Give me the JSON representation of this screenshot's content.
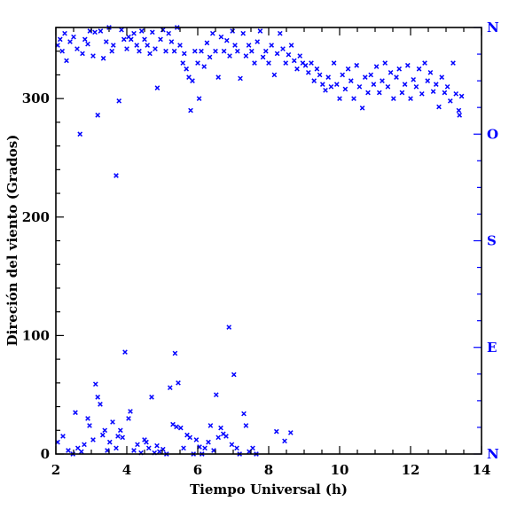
{
  "chart_data": {
    "type": "scatter",
    "title": "",
    "xlabel": "Tiempo Universal (h)",
    "ylabel": "Direción del viento (Grados)",
    "xlim": [
      2,
      14
    ],
    "ylim": [
      0,
      360
    ],
    "x_ticks": [
      2,
      4,
      6,
      8,
      10,
      12,
      14
    ],
    "x_tick_labels": [
      "2",
      "4",
      "6",
      "8",
      "10",
      "12",
      "14"
    ],
    "y_ticks": [
      0,
      100,
      200,
      300
    ],
    "y_tick_labels": [
      "0",
      "100",
      "200",
      "300"
    ],
    "right_axis_labels": [
      {
        "value": 0,
        "label": "N"
      },
      {
        "value": 90,
        "label": "E"
      },
      {
        "value": 180,
        "label": "S"
      },
      {
        "value": 270,
        "label": "O"
      },
      {
        "value": 360,
        "label": "N"
      }
    ],
    "marker": "x",
    "color": "#0000ff",
    "grid": false,
    "series": [
      {
        "points": [
          [
            2.05,
            345
          ],
          [
            2.12,
            350
          ],
          [
            2.18,
            340
          ],
          [
            2.25,
            355
          ],
          [
            2.3,
            332
          ],
          [
            2.4,
            348
          ],
          [
            2.5,
            352
          ],
          [
            2.6,
            342
          ],
          [
            2.68,
            270
          ],
          [
            2.75,
            338
          ],
          [
            2.82,
            350
          ],
          [
            2.9,
            346
          ],
          [
            2.96,
            357
          ],
          [
            3.05,
            336
          ],
          [
            3.1,
            356
          ],
          [
            3.18,
            286
          ],
          [
            3.26,
            357
          ],
          [
            3.34,
            334
          ],
          [
            3.42,
            348
          ],
          [
            3.5,
            360
          ],
          [
            3.58,
            340
          ],
          [
            3.62,
            345
          ],
          [
            3.7,
            235
          ],
          [
            3.78,
            298
          ],
          [
            3.85,
            358
          ],
          [
            3.92,
            350
          ],
          [
            4.0,
            342
          ],
          [
            4.05,
            352
          ],
          [
            4.12,
            350
          ],
          [
            4.2,
            355
          ],
          [
            4.28,
            345
          ],
          [
            4.35,
            340
          ],
          [
            4.42,
            357
          ],
          [
            4.5,
            350
          ],
          [
            4.58,
            345
          ],
          [
            4.65,
            338
          ],
          [
            4.72,
            356
          ],
          [
            4.8,
            342
          ],
          [
            4.86,
            309
          ],
          [
            4.95,
            350
          ],
          [
            5.02,
            358
          ],
          [
            5.1,
            340
          ],
          [
            5.18,
            355
          ],
          [
            5.26,
            348
          ],
          [
            5.34,
            340
          ],
          [
            5.42,
            360
          ],
          [
            5.5,
            345
          ],
          [
            5.58,
            330
          ],
          [
            5.62,
            338
          ],
          [
            5.68,
            325
          ],
          [
            5.75,
            318
          ],
          [
            5.8,
            290
          ],
          [
            5.85,
            315
          ],
          [
            5.92,
            340
          ],
          [
            6.0,
            330
          ],
          [
            6.04,
            300
          ],
          [
            6.1,
            340
          ],
          [
            6.18,
            327
          ],
          [
            6.26,
            347
          ],
          [
            6.34,
            335
          ],
          [
            6.42,
            355
          ],
          [
            6.5,
            340
          ],
          [
            6.58,
            318
          ],
          [
            6.66,
            352
          ],
          [
            6.74,
            340
          ],
          [
            6.82,
            349
          ],
          [
            6.9,
            336
          ],
          [
            6.98,
            357
          ],
          [
            7.05,
            345
          ],
          [
            7.12,
            340
          ],
          [
            7.2,
            317
          ],
          [
            7.28,
            355
          ],
          [
            7.36,
            336
          ],
          [
            7.44,
            345
          ],
          [
            7.52,
            340
          ],
          [
            7.6,
            330
          ],
          [
            7.68,
            348
          ],
          [
            7.76,
            357
          ],
          [
            7.84,
            335
          ],
          [
            7.92,
            340
          ],
          [
            8.0,
            330
          ],
          [
            8.08,
            345
          ],
          [
            8.16,
            320
          ],
          [
            8.24,
            338
          ],
          [
            8.32,
            355
          ],
          [
            8.4,
            342
          ],
          [
            8.48,
            330
          ],
          [
            8.56,
            337
          ],
          [
            8.64,
            345
          ],
          [
            8.72,
            332
          ],
          [
            8.8,
            325
          ],
          [
            8.88,
            336
          ],
          [
            8.96,
            330
          ],
          [
            9.04,
            328
          ],
          [
            9.12,
            322
          ],
          [
            9.2,
            330
          ],
          [
            9.28,
            315
          ],
          [
            9.36,
            325
          ],
          [
            9.44,
            320
          ],
          [
            9.52,
            312
          ],
          [
            9.6,
            307
          ],
          [
            9.68,
            318
          ],
          [
            9.76,
            310
          ],
          [
            9.84,
            330
          ],
          [
            9.92,
            312
          ],
          [
            10.0,
            300
          ],
          [
            10.08,
            320
          ],
          [
            10.16,
            308
          ],
          [
            10.24,
            325
          ],
          [
            10.32,
            315
          ],
          [
            10.4,
            300
          ],
          [
            10.48,
            328
          ],
          [
            10.56,
            310
          ],
          [
            10.64,
            292
          ],
          [
            10.72,
            318
          ],
          [
            10.8,
            305
          ],
          [
            10.88,
            320
          ],
          [
            10.96,
            312
          ],
          [
            11.04,
            327
          ],
          [
            11.12,
            305
          ],
          [
            11.2,
            315
          ],
          [
            11.28,
            330
          ],
          [
            11.36,
            310
          ],
          [
            11.44,
            322
          ],
          [
            11.52,
            300
          ],
          [
            11.6,
            318
          ],
          [
            11.68,
            325
          ],
          [
            11.76,
            305
          ],
          [
            11.84,
            312
          ],
          [
            11.92,
            328
          ],
          [
            12.0,
            300
          ],
          [
            12.08,
            316
          ],
          [
            12.16,
            310
          ],
          [
            12.24,
            325
          ],
          [
            12.32,
            304
          ],
          [
            12.4,
            330
          ],
          [
            12.48,
            315
          ],
          [
            12.56,
            322
          ],
          [
            12.64,
            306
          ],
          [
            12.72,
            312
          ],
          [
            12.8,
            293
          ],
          [
            12.88,
            318
          ],
          [
            12.96,
            305
          ],
          [
            13.04,
            310
          ],
          [
            13.12,
            298
          ],
          [
            13.2,
            330
          ],
          [
            13.28,
            304
          ],
          [
            13.36,
            290
          ],
          [
            13.44,
            302
          ],
          [
            13.38,
            286
          ],
          [
            2.05,
            10
          ],
          [
            2.2,
            15
          ],
          [
            2.35,
            3
          ],
          [
            2.48,
            0
          ],
          [
            2.55,
            35
          ],
          [
            2.62,
            5
          ],
          [
            2.72,
            2
          ],
          [
            2.8,
            8
          ],
          [
            2.9,
            30
          ],
          [
            2.95,
            24
          ],
          [
            3.05,
            12
          ],
          [
            3.12,
            59
          ],
          [
            3.18,
            48
          ],
          [
            3.25,
            42
          ],
          [
            3.32,
            16
          ],
          [
            3.38,
            20
          ],
          [
            3.45,
            3
          ],
          [
            3.52,
            10
          ],
          [
            3.6,
            27
          ],
          [
            3.7,
            5
          ],
          [
            3.75,
            15
          ],
          [
            3.82,
            20
          ],
          [
            3.88,
            14
          ],
          [
            3.95,
            86
          ],
          [
            4.05,
            30
          ],
          [
            4.1,
            36
          ],
          [
            4.2,
            3
          ],
          [
            4.3,
            8
          ],
          [
            4.4,
            1
          ],
          [
            4.5,
            12
          ],
          [
            4.55,
            10
          ],
          [
            4.62,
            5
          ],
          [
            4.7,
            48
          ],
          [
            4.78,
            1
          ],
          [
            4.85,
            7
          ],
          [
            4.92,
            2
          ],
          [
            5.02,
            4
          ],
          [
            5.12,
            0
          ],
          [
            5.22,
            56
          ],
          [
            5.3,
            25
          ],
          [
            5.36,
            85
          ],
          [
            5.4,
            23
          ],
          [
            5.45,
            60
          ],
          [
            5.52,
            22
          ],
          [
            5.6,
            5
          ],
          [
            5.7,
            16
          ],
          [
            5.78,
            14
          ],
          [
            5.88,
            0
          ],
          [
            5.96,
            12
          ],
          [
            6.05,
            6
          ],
          [
            6.12,
            0
          ],
          [
            6.2,
            5
          ],
          [
            6.3,
            10
          ],
          [
            6.36,
            24
          ],
          [
            6.45,
            3
          ],
          [
            6.52,
            50
          ],
          [
            6.58,
            14
          ],
          [
            6.65,
            22
          ],
          [
            6.72,
            17
          ],
          [
            6.8,
            15
          ],
          [
            6.88,
            107
          ],
          [
            6.96,
            8
          ],
          [
            7.02,
            67
          ],
          [
            7.1,
            5
          ],
          [
            7.18,
            0
          ],
          [
            7.3,
            34
          ],
          [
            7.36,
            24
          ],
          [
            7.45,
            2
          ],
          [
            7.55,
            5
          ],
          [
            7.65,
            0
          ],
          [
            8.22,
            19
          ],
          [
            8.45,
            11
          ],
          [
            8.62,
            18
          ]
        ]
      }
    ]
  }
}
